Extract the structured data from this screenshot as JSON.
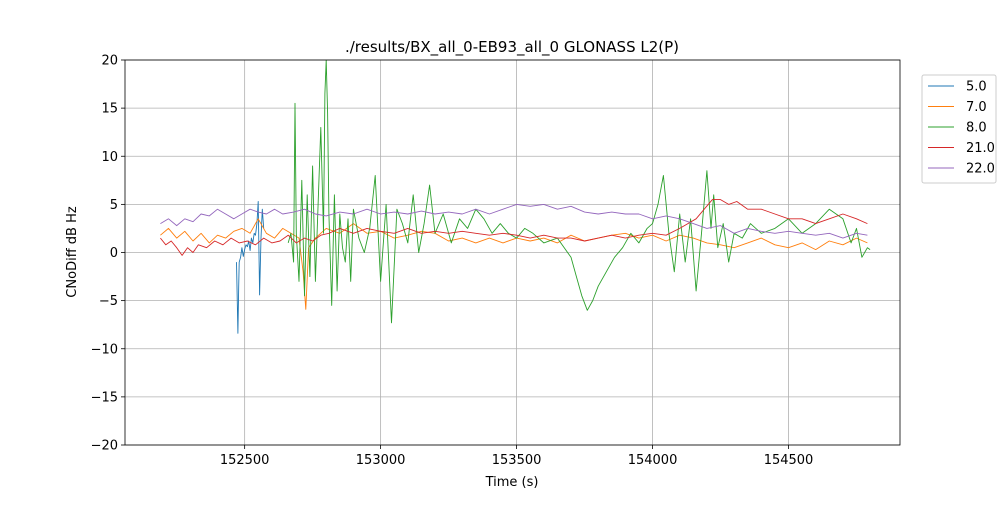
{
  "chart_data": {
    "type": "line",
    "title": "./results/BX_all_0-EB93_all_0 GLONASS L2(P)",
    "xlabel": "Time (s)",
    "ylabel": "CNoDiff dB Hz",
    "xlim": [
      152060,
      154910
    ],
    "ylim": [
      -20,
      20
    ],
    "xticks": [
      152500,
      153000,
      153500,
      154000,
      154500
    ],
    "yticks": [
      -20,
      -15,
      -10,
      -5,
      0,
      5,
      10,
      15,
      20
    ],
    "grid": true,
    "legend_position": "outside-top-right",
    "series": [
      {
        "name": "5.0",
        "color": "#1f77b4",
        "x": [
          152470,
          152475,
          152478,
          152480,
          152485,
          152490,
          152495,
          152500,
          152505,
          152510,
          152515,
          152520,
          152525,
          152530,
          152535,
          152540,
          152545,
          152550,
          152555,
          152560,
          152565,
          152570
        ],
        "y": [
          -1.0,
          -8.4,
          -3.5,
          -1.0,
          -0.5,
          0.5,
          -0.4,
          0.3,
          0.8,
          0.6,
          1.2,
          0.2,
          1.5,
          1.0,
          2.0,
          1.8,
          3.0,
          5.3,
          -4.4,
          1.5,
          4.5,
          2.5
        ]
      },
      {
        "name": "7.0",
        "color": "#ff7f0e",
        "x": [
          152190,
          152220,
          152250,
          152280,
          152310,
          152340,
          152370,
          152400,
          152430,
          152460,
          152490,
          152520,
          152550,
          152580,
          152610,
          152640,
          152670,
          152700,
          152715,
          152725,
          152735,
          152760,
          152800,
          152850,
          152900,
          152950,
          153000,
          153050,
          153100,
          153150,
          153200,
          153250,
          153300,
          153350,
          153400,
          153450,
          153500,
          153550,
          153600,
          153650,
          153700,
          153750,
          153800,
          153850,
          153900,
          153950,
          154000,
          154050,
          154100,
          154150,
          154200,
          154250,
          154300,
          154350,
          154400,
          154450,
          154500,
          154550,
          154600,
          154650,
          154700,
          154750,
          154790
        ],
        "y": [
          1.8,
          2.5,
          1.5,
          2.2,
          1.2,
          2.0,
          1.0,
          1.8,
          1.5,
          2.2,
          2.5,
          2.0,
          3.5,
          2.0,
          1.5,
          2.5,
          2.0,
          1.5,
          -2.0,
          -5.9,
          0.5,
          1.5,
          2.5,
          2.0,
          3.0,
          2.0,
          2.2,
          1.5,
          1.8,
          2.2,
          2.0,
          1.2,
          1.5,
          1.0,
          1.5,
          1.0,
          1.5,
          1.2,
          1.5,
          1.0,
          1.8,
          1.2,
          1.5,
          1.8,
          2.0,
          1.5,
          1.8,
          1.2,
          1.8,
          1.5,
          1.0,
          0.8,
          0.5,
          1.0,
          1.5,
          0.8,
          0.5,
          1.0,
          0.3,
          1.2,
          0.8,
          1.5,
          1.0
        ]
      },
      {
        "name": "8.0",
        "color": "#2ca02c",
        "x": [
          152660,
          152670,
          152680,
          152685,
          152690,
          152700,
          152710,
          152720,
          152730,
          152740,
          152750,
          152760,
          152770,
          152780,
          152790,
          152795,
          152800,
          152805,
          152810,
          152820,
          152830,
          152840,
          152850,
          152860,
          152870,
          152880,
          152890,
          152900,
          152920,
          152940,
          152960,
          152980,
          153000,
          153020,
          153040,
          153060,
          153080,
          153100,
          153120,
          153140,
          153160,
          153180,
          153200,
          153230,
          153260,
          153290,
          153320,
          153350,
          153380,
          153410,
          153440,
          153470,
          153500,
          153530,
          153560,
          153600,
          153650,
          153700,
          153720,
          153740,
          153760,
          153780,
          153800,
          153830,
          153860,
          153890,
          153920,
          153950,
          153980,
          154000,
          154020,
          154040,
          154060,
          154080,
          154100,
          154120,
          154140,
          154160,
          154180,
          154200,
          154215,
          154225,
          154240,
          154260,
          154280,
          154300,
          154330,
          154360,
          154400,
          154450,
          154500,
          154550,
          154600,
          154650,
          154700,
          154730,
          154750,
          154770,
          154790,
          154800
        ],
        "y": [
          1.0,
          2.0,
          -1.0,
          15.5,
          2.0,
          -3.0,
          7.5,
          -4.5,
          6.0,
          -2.5,
          9.0,
          -3.0,
          5.0,
          13.0,
          2.0,
          16.5,
          20.0,
          14.5,
          4.0,
          -5.5,
          6.0,
          -4.0,
          4.0,
          0.5,
          -1.0,
          3.5,
          -3.0,
          4.5,
          1.5,
          0.0,
          2.5,
          8.0,
          -3.0,
          5.0,
          -7.3,
          4.5,
          3.0,
          1.0,
          6.0,
          0.0,
          3.0,
          7.0,
          2.0,
          4.0,
          1.0,
          3.5,
          2.5,
          4.5,
          3.5,
          2.0,
          3.0,
          2.0,
          1.5,
          2.5,
          2.0,
          1.0,
          1.5,
          -0.5,
          -2.5,
          -4.5,
          -6.0,
          -5.0,
          -3.5,
          -2.0,
          -0.5,
          0.5,
          2.0,
          1.0,
          2.5,
          3.0,
          5.0,
          8.0,
          2.0,
          -2.0,
          4.0,
          -1.0,
          3.5,
          -4.0,
          2.0,
          8.5,
          2.5,
          6.0,
          0.5,
          3.0,
          -1.0,
          2.0,
          1.5,
          3.0,
          2.0,
          2.5,
          3.5,
          2.0,
          3.0,
          4.5,
          3.5,
          1.0,
          2.5,
          -0.5,
          0.5,
          0.3
        ]
      },
      {
        "name": "21.0",
        "color": "#d62728",
        "x": [
          152190,
          152210,
          152230,
          152250,
          152270,
          152290,
          152310,
          152330,
          152360,
          152390,
          152420,
          152450,
          152480,
          152510,
          152540,
          152570,
          152600,
          152630,
          152660,
          152690,
          152720,
          152750,
          152780,
          152810,
          152850,
          152900,
          152950,
          153000,
          153050,
          153100,
          153150,
          153200,
          153250,
          153300,
          153350,
          153400,
          153450,
          153500,
          153550,
          153600,
          153650,
          153700,
          153750,
          153800,
          153850,
          153900,
          153950,
          154000,
          154050,
          154100,
          154130,
          154160,
          154190,
          154220,
          154250,
          154280,
          154310,
          154350,
          154400,
          154450,
          154500,
          154550,
          154600,
          154650,
          154700,
          154750,
          154790
        ],
        "y": [
          1.5,
          0.8,
          1.2,
          0.5,
          -0.3,
          0.5,
          0.0,
          0.8,
          0.5,
          1.2,
          0.8,
          1.5,
          1.0,
          1.2,
          0.8,
          1.5,
          1.0,
          1.2,
          1.8,
          1.0,
          1.5,
          1.2,
          1.8,
          2.0,
          2.5,
          2.0,
          2.5,
          2.2,
          2.0,
          2.5,
          2.0,
          2.2,
          2.0,
          2.2,
          2.0,
          1.8,
          2.0,
          1.8,
          1.5,
          1.8,
          1.5,
          1.5,
          1.2,
          1.5,
          1.8,
          1.5,
          1.8,
          2.0,
          1.8,
          2.5,
          3.0,
          3.5,
          4.5,
          5.5,
          5.5,
          5.0,
          5.3,
          4.5,
          4.5,
          4.0,
          3.5,
          3.5,
          3.0,
          3.5,
          4.0,
          3.5,
          3.0
        ]
      },
      {
        "name": "22.0",
        "color": "#9467bd",
        "x": [
          152190,
          152220,
          152250,
          152280,
          152310,
          152340,
          152370,
          152400,
          152430,
          152460,
          152490,
          152520,
          152550,
          152580,
          152610,
          152640,
          152680,
          152720,
          152760,
          152800,
          152850,
          152900,
          152950,
          153000,
          153050,
          153100,
          153150,
          153200,
          153250,
          153300,
          153350,
          153400,
          153450,
          153500,
          153550,
          153600,
          153650,
          153700,
          153750,
          153800,
          153850,
          153900,
          153950,
          154000,
          154050,
          154100,
          154150,
          154200,
          154250,
          154300,
          154350,
          154400,
          154450,
          154500,
          154550,
          154600,
          154650,
          154700,
          154750,
          154790
        ],
        "y": [
          3.0,
          3.5,
          2.8,
          3.5,
          3.2,
          4.0,
          3.8,
          4.5,
          4.0,
          3.5,
          4.0,
          4.5,
          4.2,
          4.0,
          4.5,
          4.0,
          4.2,
          4.5,
          4.0,
          3.8,
          4.2,
          4.0,
          4.5,
          4.0,
          4.2,
          4.0,
          4.3,
          4.0,
          4.2,
          4.0,
          4.5,
          4.0,
          4.5,
          5.0,
          4.8,
          5.0,
          4.5,
          4.8,
          4.2,
          4.0,
          4.2,
          4.0,
          4.0,
          3.5,
          3.8,
          3.5,
          3.0,
          2.5,
          2.8,
          2.0,
          2.5,
          2.2,
          2.0,
          2.2,
          2.0,
          1.8,
          2.0,
          1.5,
          2.0,
          1.8
        ]
      }
    ]
  }
}
